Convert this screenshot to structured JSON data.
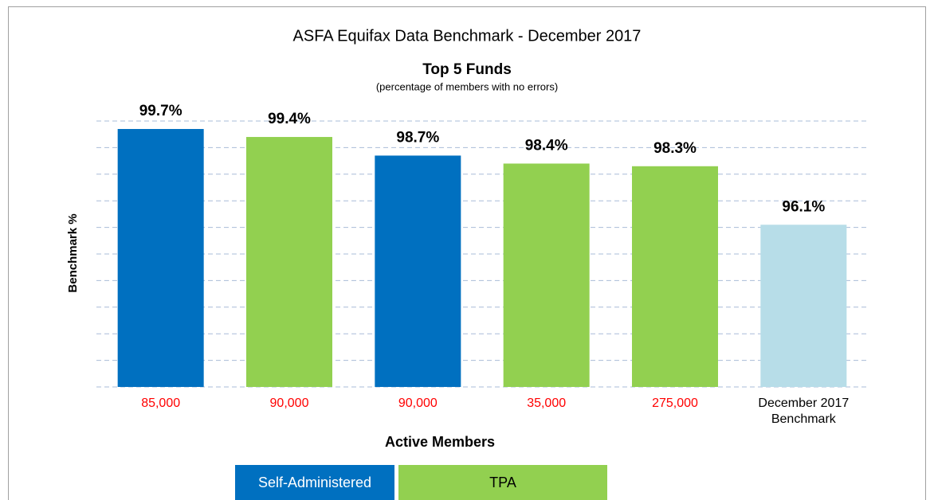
{
  "chart_data": {
    "type": "bar",
    "title": "ASFA Equifax Data Benchmark - December 2017",
    "subtitle": "Top 5 Funds",
    "note": "(percentage of members with no errors)",
    "ylabel": "Benchmark %",
    "xlabel": "Active Members",
    "categories": [
      "85,000",
      "90,000",
      "90,000",
      "35,000",
      "275,000",
      "December 2017 Benchmark"
    ],
    "category_colors": [
      "#ff0000",
      "#ff0000",
      "#ff0000",
      "#ff0000",
      "#ff0000",
      "#000000"
    ],
    "values": [
      99.7,
      99.4,
      98.7,
      98.4,
      98.3,
      96.1
    ],
    "value_labels": [
      "99.7%",
      "99.4%",
      "98.7%",
      "98.4%",
      "98.3%",
      "96.1%"
    ],
    "colors": [
      "#0070c0",
      "#92d050",
      "#0070c0",
      "#92d050",
      "#92d050",
      "#b7dde8"
    ],
    "ylim": [
      90,
      100
    ],
    "yticks": [
      90,
      91,
      92,
      93,
      94,
      95,
      96,
      97,
      98,
      99,
      100
    ],
    "grid": true,
    "legend": [
      {
        "name": "Self-Administered",
        "color": "#0070c0"
      },
      {
        "name": "TPA",
        "color": "#92d050"
      }
    ]
  }
}
